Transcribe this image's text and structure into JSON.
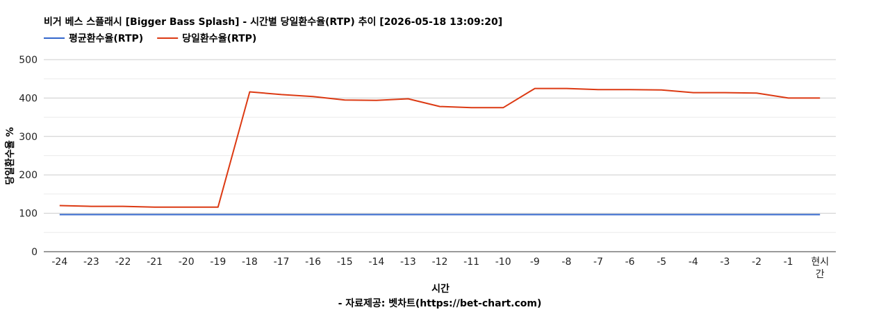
{
  "chart_data": {
    "type": "line",
    "title": "비거 베스 스플래시 [Bigger Bass Splash] - 시간별 당일환수율(RTP) 추이 [2026-05-18 13:09:20]",
    "xlabel": "시간",
    "ylabel": "당일환수율 %",
    "source": "- 자료제공: 벳차트(https://bet-chart.com)",
    "categories": [
      "-24",
      "-23",
      "-22",
      "-21",
      "-20",
      "-19",
      "-18",
      "-17",
      "-16",
      "-15",
      "-14",
      "-13",
      "-12",
      "-11",
      "-10",
      "-9",
      "-8",
      "-7",
      "-6",
      "-5",
      "-4",
      "-3",
      "-2",
      "-1",
      "현시간"
    ],
    "series": [
      {
        "name": "평균환수율(RTP)",
        "color": "#3366cc",
        "values": [
          96.5,
          96.5,
          96.5,
          96.5,
          96.5,
          96.5,
          96.5,
          96.5,
          96.5,
          96.5,
          96.5,
          96.5,
          96.5,
          96.5,
          96.5,
          96.5,
          96.5,
          96.5,
          96.5,
          96.5,
          96.5,
          96.5,
          96.5,
          96.5,
          96.5
        ]
      },
      {
        "name": "당일환수율(RTP)",
        "color": "#dc3912",
        "values": [
          120,
          118,
          118,
          116,
          116,
          116,
          416,
          409,
          404,
          395,
          394,
          398,
          378,
          375,
          375,
          425,
          425,
          422,
          422,
          421,
          414,
          414,
          413,
          400,
          400
        ]
      }
    ],
    "ylim": [
      0,
      500
    ],
    "yticks": [
      0,
      100,
      200,
      300,
      400,
      500
    ],
    "grid": true,
    "legend_position": "top-left"
  }
}
